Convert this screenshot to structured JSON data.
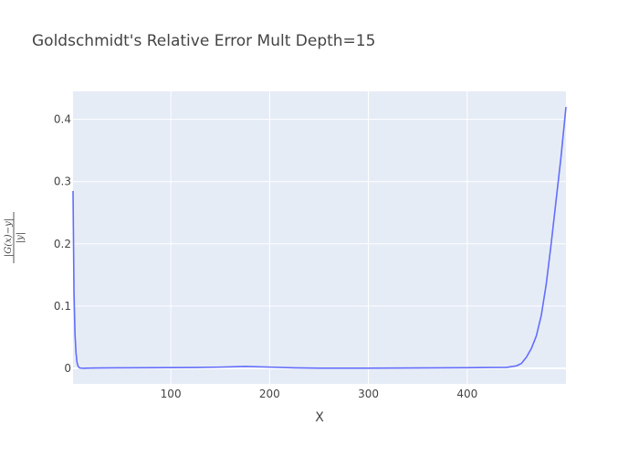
{
  "chart_data": {
    "type": "line",
    "title": "Goldschmidt's Relative Error Mult Depth=15",
    "xlabel": "X",
    "ylabel_numerator": "|G(x)−y|",
    "ylabel_denominator": "|y|",
    "xlim": [
      1,
      500
    ],
    "ylim": [
      -0.025,
      0.445
    ],
    "xticks": [
      100,
      200,
      300,
      400
    ],
    "xtick_labels": [
      "100",
      "200",
      "300",
      "400"
    ],
    "yticks": [
      0,
      0.1,
      0.2,
      0.3,
      0.4
    ],
    "ytick_labels": [
      "0",
      "0.1",
      "0.2",
      "0.3",
      "0.4"
    ],
    "grid": true,
    "colors": {
      "plot_bg": "#e5ecf6",
      "grid": "#ffffff",
      "line": "#636efa"
    },
    "series": [
      {
        "x": [
          1,
          2,
          3,
          4,
          5,
          6,
          7,
          8,
          10,
          12,
          15,
          20,
          30,
          50,
          75,
          100,
          125,
          150,
          175,
          200,
          225,
          250,
          275,
          300,
          325,
          350,
          375,
          400,
          420,
          440,
          450,
          455,
          460,
          465,
          470,
          475,
          480,
          485,
          490,
          495,
          500
        ],
        "values": [
          0.285,
          0.12,
          0.055,
          0.025,
          0.01,
          0.004,
          0.0015,
          0.0005,
          0.0002,
          0.0001,
          0.0002,
          0.0004,
          0.0006,
          0.0008,
          0.001,
          0.0012,
          0.0014,
          0.002,
          0.003,
          0.002,
          0.0008,
          0.0003,
          0.0002,
          0.0003,
          0.0004,
          0.0006,
          0.0008,
          0.001,
          0.0013,
          0.0015,
          0.004,
          0.008,
          0.018,
          0.032,
          0.052,
          0.085,
          0.135,
          0.2,
          0.27,
          0.34,
          0.42
        ]
      }
    ]
  }
}
